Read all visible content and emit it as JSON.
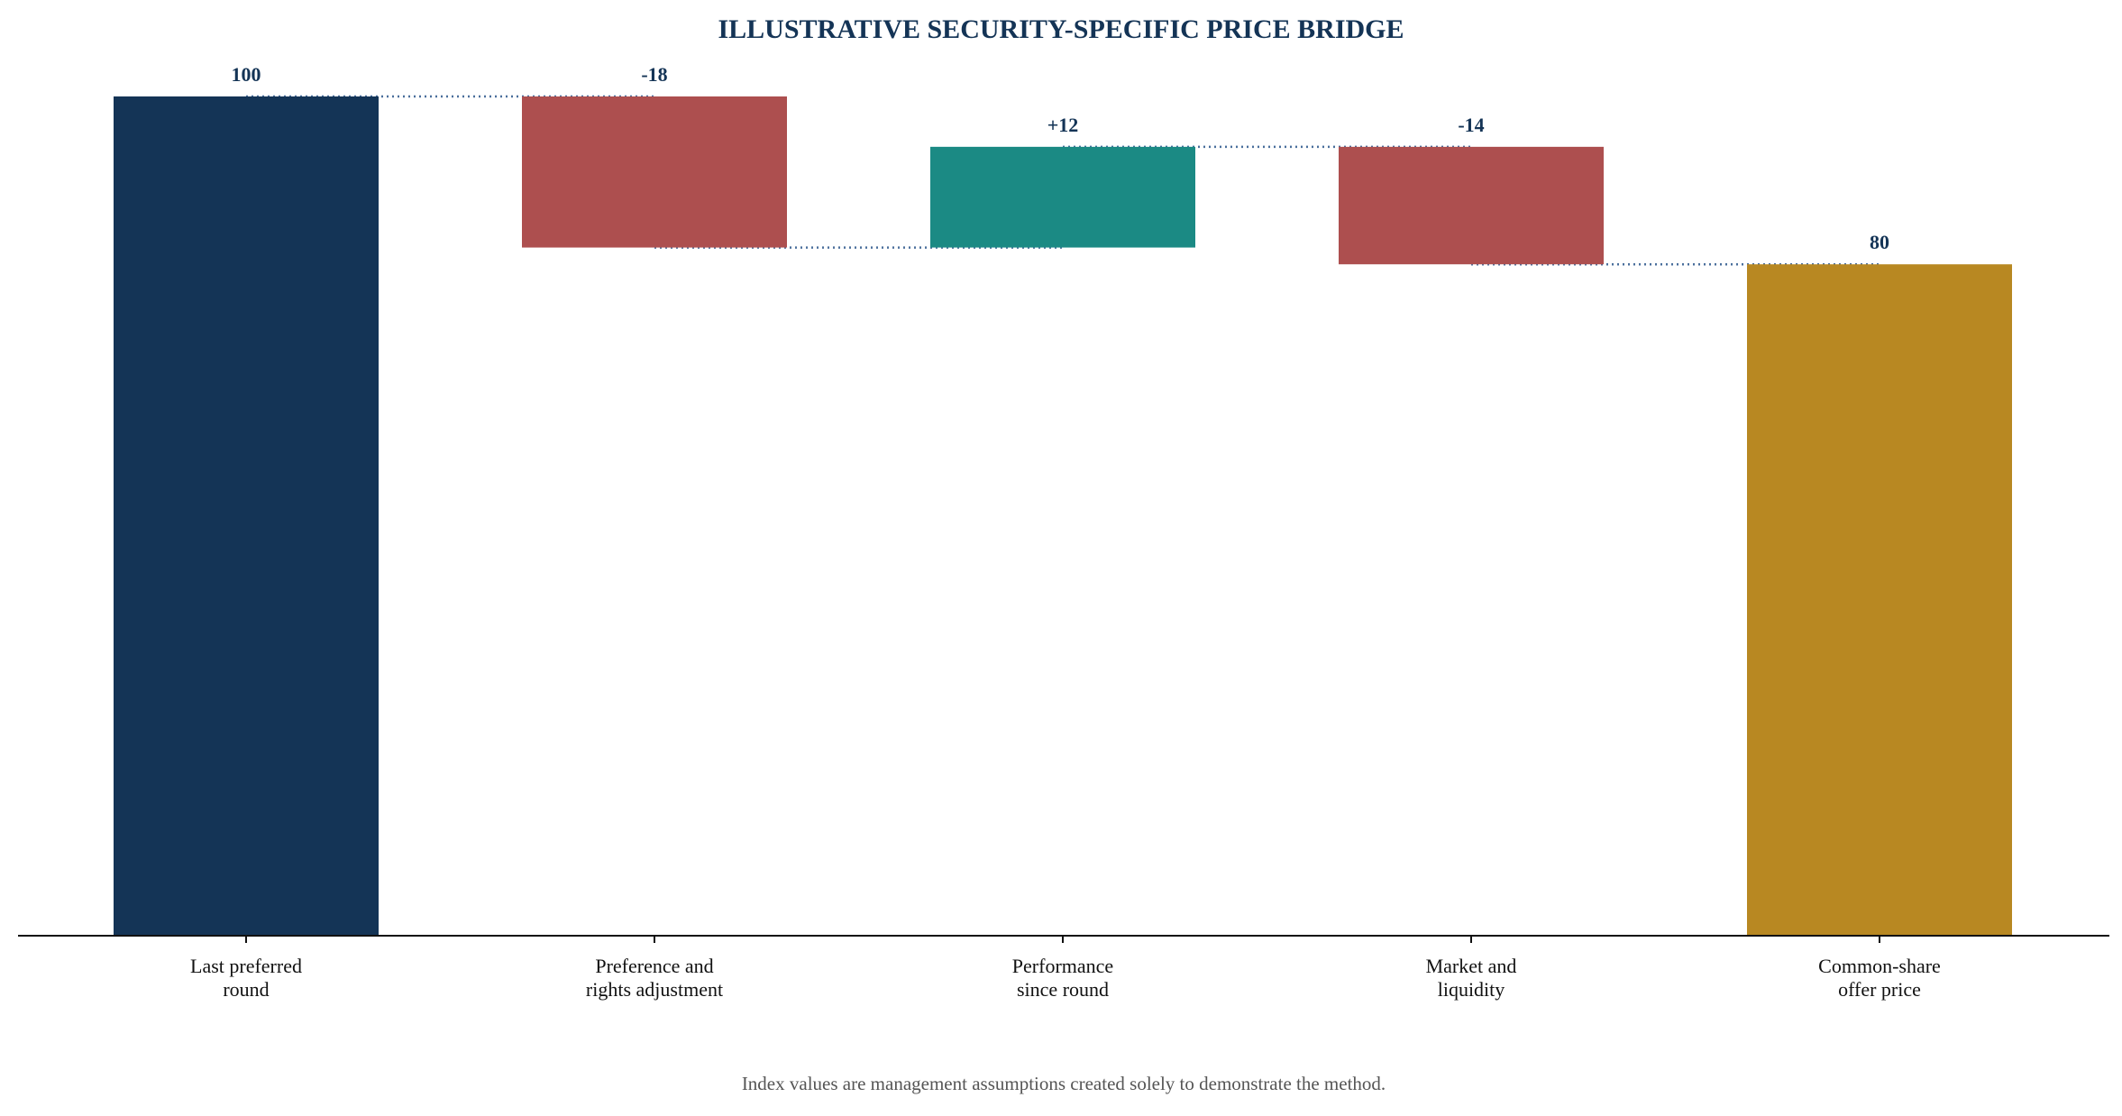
{
  "chart_data": {
    "type": "bar",
    "subtype": "waterfall",
    "title": "ILLUSTRATIVE SECURITY-SPECIFIC PRICE BRIDGE",
    "xlabel": "",
    "ylabel": "",
    "ylim": [
      0,
      100
    ],
    "grid": false,
    "categories": [
      [
        "Last preferred",
        "round"
      ],
      [
        "Preference and",
        "rights adjustment"
      ],
      [
        "Performance",
        "since round"
      ],
      [
        "Market and",
        "liquidity"
      ],
      [
        "Common-share",
        "offer price"
      ]
    ],
    "steps": [
      {
        "kind": "total",
        "value": 100,
        "label": "100"
      },
      {
        "kind": "delta",
        "value": -18,
        "label": "-18"
      },
      {
        "kind": "delta",
        "value": 12,
        "label": "+12"
      },
      {
        "kind": "delta",
        "value": -14,
        "label": "-14"
      },
      {
        "kind": "total",
        "value": 80,
        "label": "80"
      }
    ],
    "colors": {
      "start_total": "#143456",
      "end_total": "#b88822",
      "decrease": "#ad4f4f",
      "increase": "#1b8a84",
      "connector": "#4a6f9c",
      "axis": "#111111",
      "title": "#143456",
      "data_label": "#143456",
      "footnote": "#555555"
    },
    "footnote": "Index values are management assumptions created solely to demonstrate the method."
  }
}
